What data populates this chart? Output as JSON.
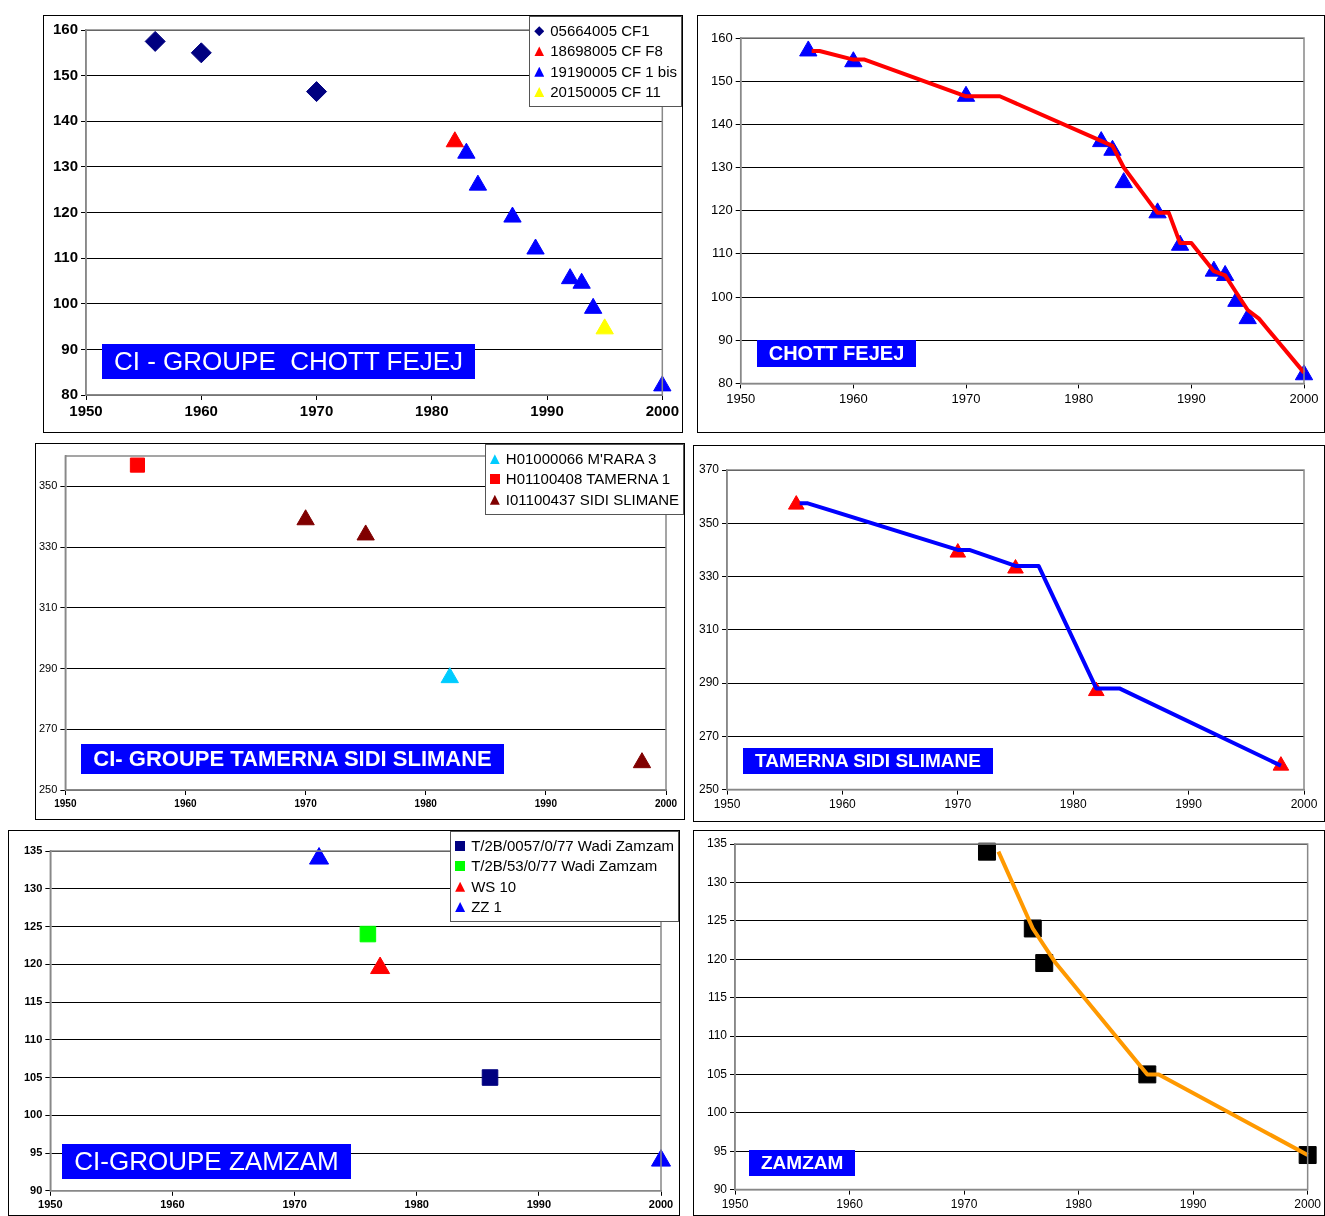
{
  "chart_data": [
    {
      "type": "scatter",
      "title": "CI - GROUPE  CHOTT FEJEJ",
      "xlim": [
        1950,
        2000
      ],
      "xticks": [
        1950,
        1960,
        1970,
        1980,
        1990,
        2000
      ],
      "ylim": [
        80,
        160
      ],
      "yticks": [
        80,
        90,
        100,
        110,
        120,
        130,
        140,
        150,
        160
      ],
      "grid": "y",
      "legend": "top right",
      "series": [
        {
          "name": "05664005 CF1",
          "color": "#000080",
          "marker": "diamond",
          "x": [
            1956,
            1960,
            1970
          ],
          "values": [
            157.5,
            155,
            146.5
          ]
        },
        {
          "name": "18698005 CF F8",
          "color": "#ff0000",
          "marker": "triangle",
          "x": [
            1982
          ],
          "values": [
            135.5
          ]
        },
        {
          "name": "19190005 CF 1 bis",
          "color": "#0000ff",
          "marker": "triangle",
          "x": [
            1983,
            1984,
            1987,
            1989,
            1992,
            1993,
            1994,
            2000
          ],
          "values": [
            133,
            126,
            119,
            112,
            105.5,
            104.5,
            99,
            82
          ]
        },
        {
          "name": "20150005 CF 11",
          "color": "#ffff00",
          "marker": "triangle",
          "x": [
            1995
          ],
          "values": [
            94.5
          ]
        }
      ]
    },
    {
      "type": "scatter",
      "title": "CHOTT FEJEJ",
      "xlim": [
        1950,
        2000
      ],
      "xticks": [
        1950,
        1960,
        1970,
        1980,
        1990,
        2000
      ],
      "ylim": [
        80,
        160
      ],
      "yticks": [
        80,
        90,
        100,
        110,
        120,
        130,
        140,
        150,
        160
      ],
      "grid": "y",
      "series": [
        {
          "color": "#ff0000",
          "type": "line",
          "marker": "none",
          "x": [
            1956.3,
            1957,
            1960,
            1961,
            1970,
            1973,
            1983,
            1984,
            1985,
            1987,
            1988,
            1989,
            1990,
            1992,
            1993,
            1994,
            1995,
            1996,
            2000
          ],
          "values": [
            157,
            157,
            155,
            155,
            146.5,
            146.5,
            135,
            130,
            126.5,
            119.5,
            119.5,
            112.5,
            112.5,
            106,
            105,
            101,
            97,
            95,
            82.5
          ]
        },
        {
          "color": "#0000ff",
          "marker": "triangle",
          "x": [
            1956,
            1960,
            1970,
            1982,
            1983,
            1984,
            1987,
            1989,
            1992,
            1993,
            1994,
            1995,
            2000
          ],
          "values": [
            157,
            154.5,
            146.5,
            136,
            134,
            126.5,
            119.5,
            112,
            106,
            105,
            99,
            95,
            82
          ]
        }
      ]
    },
    {
      "type": "scatter",
      "title": "CI- GROUPE TAMERNA SIDI SLIMANE",
      "xlim": [
        1950,
        2000
      ],
      "xticks": [
        1950,
        1960,
        1970,
        1980,
        1990,
        2000
      ],
      "ylim": [
        250,
        360
      ],
      "yticks": [
        250,
        270,
        290,
        310,
        330,
        350
      ],
      "grid": "y",
      "legend": "top right",
      "series": [
        {
          "name": "H01000066 M'RARA 3",
          "color": "#00ccff",
          "marker": "triangle",
          "x": [
            1982
          ],
          "values": [
            287
          ]
        },
        {
          "name": "H01100408 TAMERNA 1",
          "color": "#ff0000",
          "marker": "square",
          "x": [
            1956
          ],
          "values": [
            357
          ]
        },
        {
          "name": "I01100437 SIDI SLIMANE",
          "color": "#800000",
          "marker": "triangle",
          "x": [
            1970,
            1975,
            1998
          ],
          "values": [
            339,
            334,
            259
          ]
        }
      ]
    },
    {
      "type": "scatter",
      "title": "TAMERNA SIDI SLIMANE",
      "xlim": [
        1950,
        2000
      ],
      "xticks": [
        1950,
        1960,
        1970,
        1980,
        1990,
        2000
      ],
      "ylim": [
        250,
        370
      ],
      "yticks": [
        250,
        270,
        290,
        310,
        330,
        350,
        370
      ],
      "grid": "y",
      "series": [
        {
          "color": "#0000ff",
          "type": "line",
          "marker": "none",
          "x": [
            1956.3,
            1957,
            1970,
            1971,
            1975,
            1977,
            1982,
            1984,
            1998
          ],
          "values": [
            357.5,
            357.5,
            340,
            340,
            334,
            334,
            288,
            288,
            259
          ]
        },
        {
          "color": "#ff0000",
          "marker": "triangle",
          "x": [
            1956,
            1970,
            1975,
            1982,
            1998
          ],
          "values": [
            357,
            339,
            333,
            287,
            259
          ]
        }
      ]
    },
    {
      "type": "scatter",
      "title": "CI-GROUPE ZAMZAM",
      "xlim": [
        1950,
        2000
      ],
      "xticks": [
        1950,
        1960,
        1970,
        1980,
        1990,
        2000
      ],
      "ylim": [
        90,
        135
      ],
      "yticks": [
        90,
        95,
        100,
        105,
        110,
        115,
        120,
        125,
        130,
        135
      ],
      "grid": "y",
      "legend": "top right",
      "series": [
        {
          "name": "T/2B/0057/0/77 Wadi Zamzam",
          "color": "#000080",
          "marker": "square",
          "x": [
            1986
          ],
          "values": [
            105
          ]
        },
        {
          "name": "T/2B/53/0/77 Wadi Zamzam",
          "color": "#00ff00",
          "marker": "square",
          "x": [
            1976
          ],
          "values": [
            124
          ]
        },
        {
          "name": "WS 10",
          "color": "#ff0000",
          "marker": "triangle",
          "x": [
            1977
          ],
          "values": [
            119.5
          ]
        },
        {
          "name": "ZZ 1",
          "color": "#0000ff",
          "marker": "triangle",
          "x": [
            1972,
            2000
          ],
          "values": [
            134,
            94
          ]
        }
      ]
    },
    {
      "type": "scatter",
      "title": "ZAMZAM",
      "xlim": [
        1950,
        2000
      ],
      "xticks": [
        1950,
        1960,
        1970,
        1980,
        1990,
        2000
      ],
      "ylim": [
        90,
        135
      ],
      "yticks": [
        90,
        95,
        100,
        105,
        110,
        115,
        120,
        125,
        130,
        135
      ],
      "grid": "y",
      "series": [
        {
          "color": "#ff9900",
          "type": "line",
          "marker": "none",
          "x": [
            1973,
            1976,
            1978,
            1986,
            1987,
            2000
          ],
          "values": [
            134,
            124,
            119.5,
            105,
            105,
            94.5
          ]
        },
        {
          "color": "#000000",
          "marker": "square",
          "x": [
            1972,
            1976,
            1977,
            1986,
            2000
          ],
          "values": [
            134,
            124,
            119.5,
            105,
            94.5
          ]
        }
      ]
    }
  ]
}
